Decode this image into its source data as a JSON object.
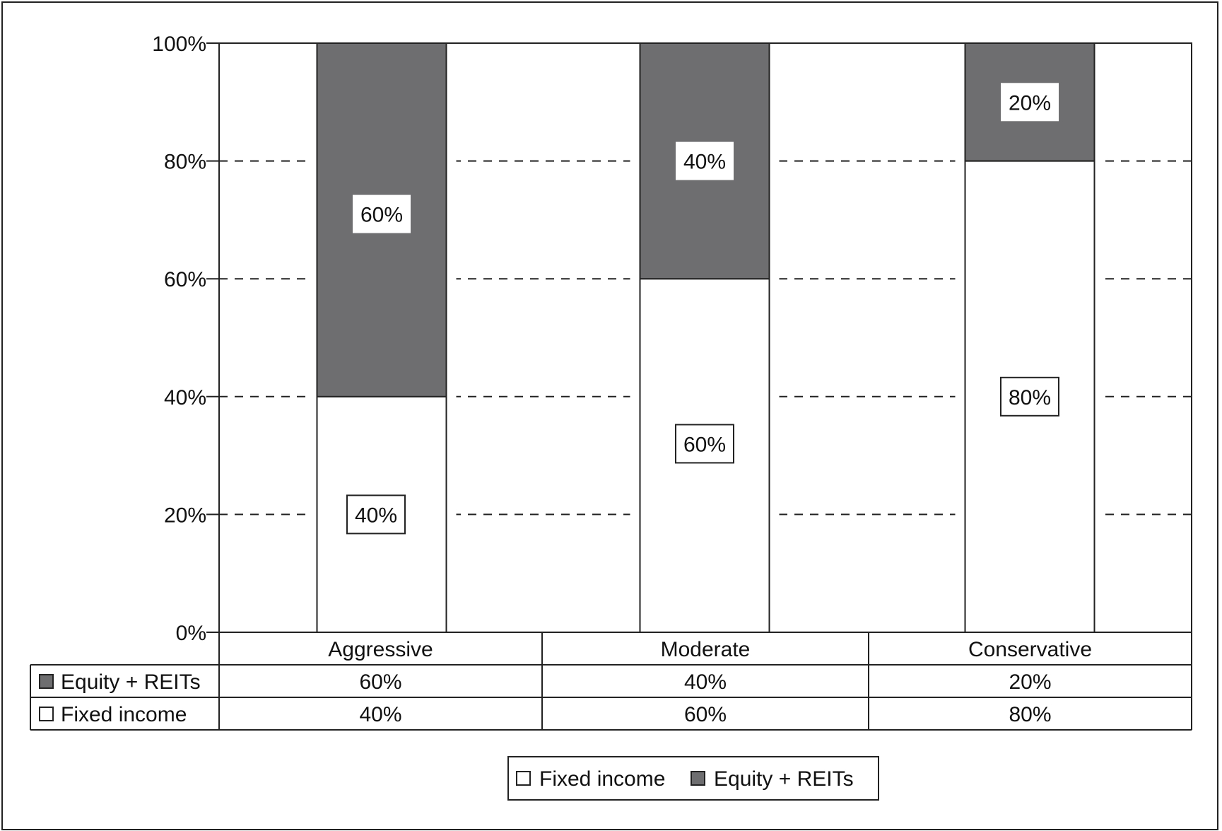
{
  "chart_data": {
    "type": "bar",
    "stacked": true,
    "categories": [
      "Aggressive",
      "Moderate",
      "Conservative"
    ],
    "series": [
      {
        "name": "Fixed income",
        "values": [
          40,
          60,
          80
        ],
        "color": "#ffffff",
        "icon": "white-square-icon"
      },
      {
        "name": "Equity + REITs",
        "values": [
          60,
          40,
          20
        ],
        "color": "#6e6e70",
        "icon": "gray-square-icon"
      }
    ],
    "ylim": [
      0,
      100
    ],
    "yticks": [
      "0%",
      "20%",
      "40%",
      "60%",
      "80%",
      "100%"
    ],
    "grid": "dashed horizontal",
    "data_labels": {
      "Fixed income": [
        "40%",
        "60%",
        "80%"
      ],
      "Equity + REITs": [
        "60%",
        "40%",
        "20%"
      ]
    },
    "table": {
      "rows": [
        {
          "label": "Equity + REITs",
          "icon": "gray-square-icon",
          "values": [
            "60%",
            "40%",
            "20%"
          ]
        },
        {
          "label": "Fixed income",
          "icon": "white-square-icon",
          "values": [
            "40%",
            "60%",
            "80%"
          ]
        }
      ]
    },
    "legend": {
      "placement": "bottom-center",
      "items": [
        {
          "label": "Fixed income",
          "icon": "white-square-icon"
        },
        {
          "label": "Equity + REITs",
          "icon": "gray-square-icon"
        }
      ]
    }
  }
}
